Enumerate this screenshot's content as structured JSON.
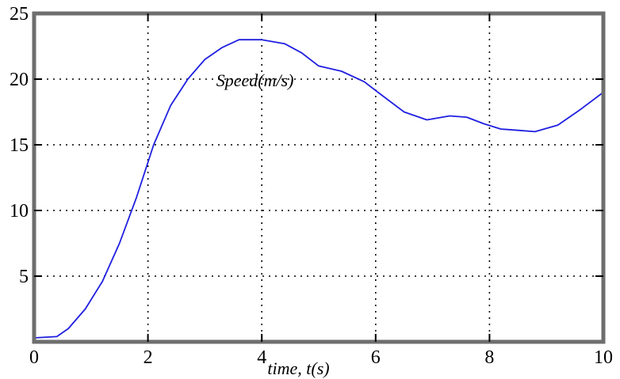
{
  "chart_data": {
    "type": "line",
    "title": "",
    "xlabel": "time, t(s)",
    "ylabel": "",
    "annotation": "Speed(m/s)",
    "xlim": [
      0,
      10
    ],
    "ylim": [
      0,
      25
    ],
    "x_ticks": [
      0,
      2,
      4,
      6,
      8,
      10
    ],
    "y_ticks": [
      5,
      10,
      15,
      20,
      25
    ],
    "grid": true,
    "grid_style": "dotted",
    "legend": "none",
    "series": [
      {
        "color": "#1f1fe0",
        "points": [
          [
            0.0,
            0.3
          ],
          [
            0.4,
            0.4
          ],
          [
            0.6,
            1.0
          ],
          [
            0.9,
            2.5
          ],
          [
            1.2,
            4.6
          ],
          [
            1.5,
            7.5
          ],
          [
            1.8,
            11.0
          ],
          [
            2.1,
            15.0
          ],
          [
            2.4,
            18.0
          ],
          [
            2.7,
            20.0
          ],
          [
            3.0,
            21.5
          ],
          [
            3.3,
            22.4
          ],
          [
            3.6,
            23.0
          ],
          [
            4.0,
            23.0
          ],
          [
            4.4,
            22.7
          ],
          [
            4.7,
            22.0
          ],
          [
            5.0,
            21.0
          ],
          [
            5.4,
            20.6
          ],
          [
            5.8,
            19.8
          ],
          [
            6.1,
            18.8
          ],
          [
            6.5,
            17.5
          ],
          [
            6.9,
            16.9
          ],
          [
            7.3,
            17.2
          ],
          [
            7.6,
            17.1
          ],
          [
            7.9,
            16.6
          ],
          [
            8.2,
            16.2
          ],
          [
            8.5,
            16.1
          ],
          [
            8.8,
            16.0
          ],
          [
            9.2,
            16.5
          ],
          [
            9.6,
            17.7
          ],
          [
            10.0,
            19.0
          ]
        ]
      }
    ]
  }
}
